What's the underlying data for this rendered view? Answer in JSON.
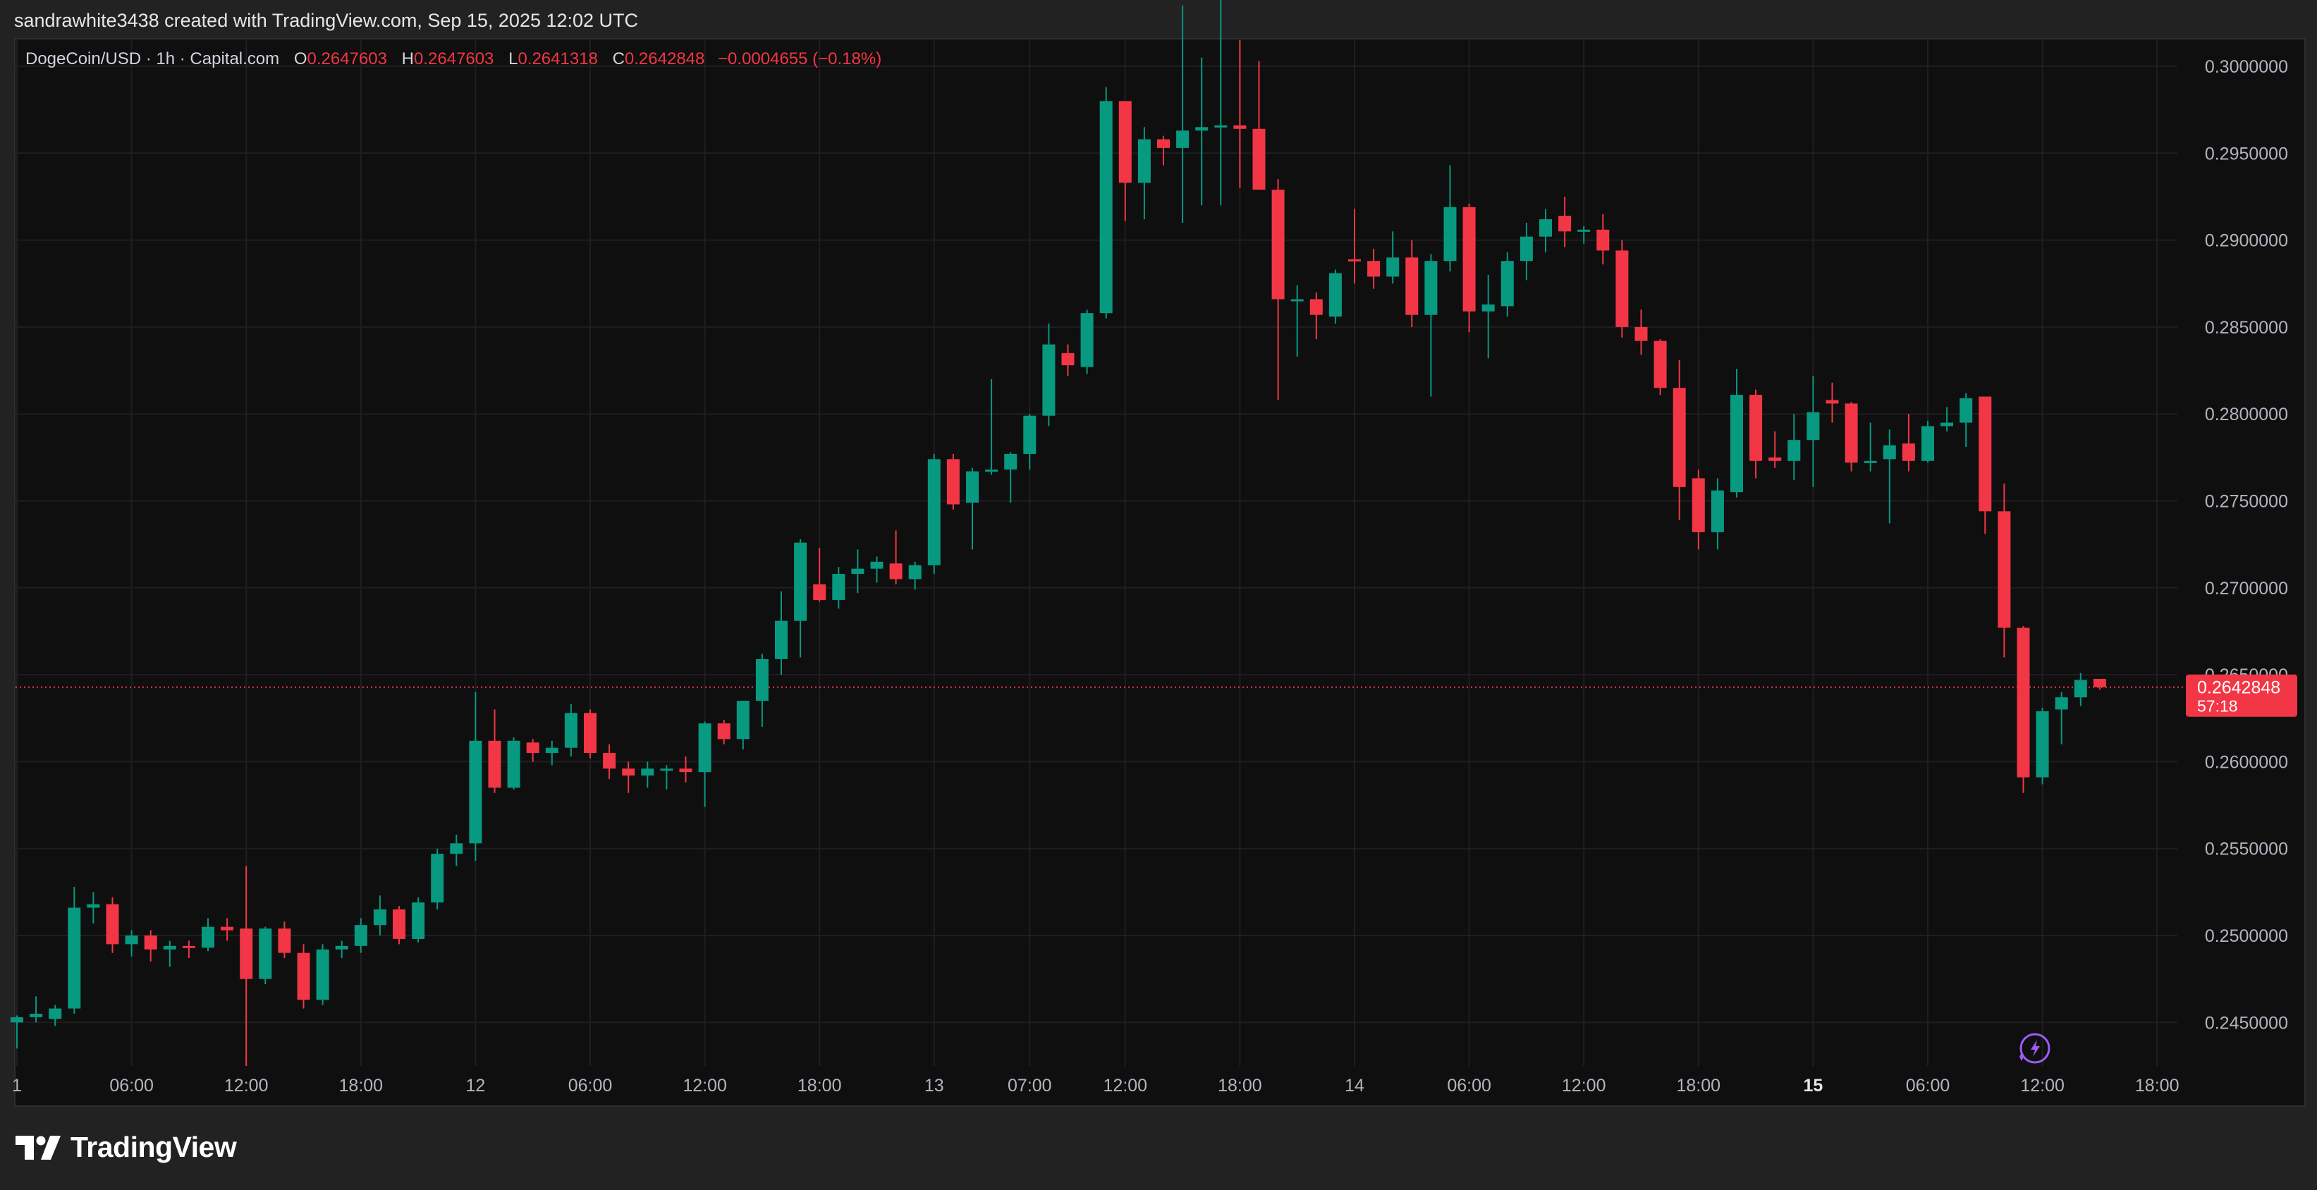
{
  "header": {
    "credit": "sandrawhite3438 created with TradingView.com, Sep 15, 2025 12:02 UTC"
  },
  "legend": {
    "symbol": "DogeCoin/USD · 1h · Capital.com",
    "o_label": "O",
    "o_value": "0.2647603",
    "h_label": "H",
    "h_value": "0.2647603",
    "l_label": "L",
    "l_value": "0.2641318",
    "c_label": "C",
    "c_value": "0.2642848",
    "change": "−0.0004655 (−0.18%)"
  },
  "price_tag": {
    "price": "0.2642848",
    "countdown": "57:18"
  },
  "brand": {
    "name": "TradingView"
  },
  "colors": {
    "up": "#089981",
    "down": "#f23645",
    "grid": "#1f1f1f",
    "text": "#b2b5be",
    "background": "#0f0f0f"
  },
  "icons": [
    "tradingview-logo-icon",
    "lightning-icon"
  ],
  "chart_data": {
    "type": "candlestick",
    "title": "DogeCoin/USD · 1h · Capital.com",
    "ylim": [
      0.2425,
      0.3025
    ],
    "y_ticks": [
      "0.3000000",
      "0.2950000",
      "0.2900000",
      "0.2850000",
      "0.2800000",
      "0.2750000",
      "0.2700000",
      "0.2650000",
      "0.2600000",
      "0.2550000",
      "0.2500000",
      "0.2450000"
    ],
    "x_ticks": [
      {
        "i": 0,
        "label": "1",
        "bold": false
      },
      {
        "i": 6,
        "label": "06:00",
        "bold": false
      },
      {
        "i": 12,
        "label": "12:00",
        "bold": false
      },
      {
        "i": 18,
        "label": "18:00",
        "bold": false
      },
      {
        "i": 24,
        "label": "12",
        "bold": false
      },
      {
        "i": 30,
        "label": "06:00",
        "bold": false
      },
      {
        "i": 36,
        "label": "12:00",
        "bold": false
      },
      {
        "i": 42,
        "label": "18:00",
        "bold": false
      },
      {
        "i": 48,
        "label": "13",
        "bold": false
      },
      {
        "i": 53,
        "label": "07:00",
        "bold": false
      },
      {
        "i": 58,
        "label": "12:00",
        "bold": false
      },
      {
        "i": 64,
        "label": "18:00",
        "bold": false
      },
      {
        "i": 70,
        "label": "14",
        "bold": false
      },
      {
        "i": 76,
        "label": "06:00",
        "bold": false
      },
      {
        "i": 82,
        "label": "12:00",
        "bold": false
      },
      {
        "i": 88,
        "label": "18:00",
        "bold": false
      },
      {
        "i": 94,
        "label": "15",
        "bold": true
      },
      {
        "i": 100,
        "label": "06:00",
        "bold": false
      },
      {
        "i": 106,
        "label": "12:00",
        "bold": false
      },
      {
        "i": 112,
        "label": "18:00",
        "bold": false
      }
    ],
    "last_price": 0.2642848,
    "candles": [
      [
        0.245,
        0.2454,
        0.2435,
        0.2453
      ],
      [
        0.2453,
        0.2465,
        0.245,
        0.2455
      ],
      [
        0.2452,
        0.246,
        0.2448,
        0.2458
      ],
      [
        0.2458,
        0.2528,
        0.2455,
        0.2516
      ],
      [
        0.2516,
        0.2525,
        0.2507,
        0.2518
      ],
      [
        0.2518,
        0.2522,
        0.249,
        0.2495
      ],
      [
        0.2495,
        0.2503,
        0.2488,
        0.25
      ],
      [
        0.25,
        0.2503,
        0.2485,
        0.2492
      ],
      [
        0.2492,
        0.2497,
        0.2482,
        0.2494
      ],
      [
        0.2494,
        0.2497,
        0.2487,
        0.2493
      ],
      [
        0.2493,
        0.251,
        0.2491,
        0.2505
      ],
      [
        0.2505,
        0.251,
        0.2497,
        0.2503
      ],
      [
        0.2504,
        0.254,
        0.2425,
        0.2475
      ],
      [
        0.2475,
        0.2505,
        0.2472,
        0.2504
      ],
      [
        0.2504,
        0.2508,
        0.2487,
        0.249
      ],
      [
        0.249,
        0.2495,
        0.2458,
        0.2463
      ],
      [
        0.2463,
        0.2495,
        0.246,
        0.2492
      ],
      [
        0.2492,
        0.2497,
        0.2487,
        0.2494
      ],
      [
        0.2494,
        0.251,
        0.249,
        0.2506
      ],
      [
        0.2506,
        0.2523,
        0.25,
        0.2515
      ],
      [
        0.2515,
        0.2517,
        0.2495,
        0.2498
      ],
      [
        0.2498,
        0.2522,
        0.2496,
        0.2519
      ],
      [
        0.2519,
        0.255,
        0.2515,
        0.2547
      ],
      [
        0.2547,
        0.2558,
        0.254,
        0.2553
      ],
      [
        0.2553,
        0.264,
        0.2543,
        0.2612
      ],
      [
        0.2612,
        0.263,
        0.2582,
        0.2585
      ],
      [
        0.2585,
        0.2614,
        0.2584,
        0.2612
      ],
      [
        0.2611,
        0.2613,
        0.26,
        0.2605
      ],
      [
        0.2605,
        0.2612,
        0.2598,
        0.2608
      ],
      [
        0.2608,
        0.2633,
        0.2603,
        0.2628
      ],
      [
        0.2628,
        0.263,
        0.2602,
        0.2605
      ],
      [
        0.2605,
        0.261,
        0.259,
        0.2596
      ],
      [
        0.2596,
        0.26,
        0.2582,
        0.2592
      ],
      [
        0.2592,
        0.26,
        0.2585,
        0.2596
      ],
      [
        0.2596,
        0.2598,
        0.2584,
        0.2596
      ],
      [
        0.2596,
        0.2603,
        0.2588,
        0.2594
      ],
      [
        0.2594,
        0.2623,
        0.2574,
        0.2622
      ],
      [
        0.2622,
        0.2624,
        0.261,
        0.2613
      ],
      [
        0.2613,
        0.2635,
        0.2607,
        0.2635
      ],
      [
        0.2635,
        0.2662,
        0.262,
        0.2659
      ],
      [
        0.2659,
        0.2698,
        0.265,
        0.2681
      ],
      [
        0.2681,
        0.2728,
        0.266,
        0.2726
      ],
      [
        0.2702,
        0.2723,
        0.2692,
        0.2693
      ],
      [
        0.2693,
        0.2712,
        0.2688,
        0.2708
      ],
      [
        0.2708,
        0.2722,
        0.2697,
        0.2711
      ],
      [
        0.2711,
        0.2718,
        0.2703,
        0.2715
      ],
      [
        0.2714,
        0.2733,
        0.2702,
        0.2705
      ],
      [
        0.2705,
        0.2715,
        0.2699,
        0.2713
      ],
      [
        0.2713,
        0.2777,
        0.2708,
        0.2774
      ],
      [
        0.2774,
        0.2777,
        0.2745,
        0.2748
      ],
      [
        0.2749,
        0.2769,
        0.2722,
        0.2767
      ],
      [
        0.2767,
        0.282,
        0.2765,
        0.2768
      ],
      [
        0.2768,
        0.2778,
        0.2749,
        0.2777
      ],
      [
        0.2777,
        0.28,
        0.2768,
        0.2799
      ],
      [
        0.2799,
        0.2852,
        0.2793,
        0.284
      ],
      [
        0.2835,
        0.284,
        0.2822,
        0.2828
      ],
      [
        0.2827,
        0.286,
        0.2823,
        0.2858
      ],
      [
        0.2858,
        0.2988,
        0.2855,
        0.298
      ],
      [
        0.298,
        0.298,
        0.2911,
        0.2933
      ],
      [
        0.2933,
        0.2965,
        0.2912,
        0.2958
      ],
      [
        0.2958,
        0.296,
        0.2943,
        0.2953
      ],
      [
        0.2953,
        0.3035,
        0.291,
        0.2963
      ],
      [
        0.2963,
        0.3005,
        0.292,
        0.2965
      ],
      [
        0.2965,
        0.304,
        0.292,
        0.2966
      ],
      [
        0.2966,
        0.3015,
        0.293,
        0.2964
      ],
      [
        0.2964,
        0.3003,
        0.293,
        0.2929
      ],
      [
        0.2929,
        0.2935,
        0.2808,
        0.2866
      ],
      [
        0.2866,
        0.2874,
        0.2833,
        0.2866
      ],
      [
        0.2866,
        0.287,
        0.2843,
        0.2857
      ],
      [
        0.2856,
        0.2883,
        0.2852,
        0.2881
      ],
      [
        0.2889,
        0.2918,
        0.2875,
        0.2888
      ],
      [
        0.2888,
        0.2895,
        0.2872,
        0.2879
      ],
      [
        0.2879,
        0.2905,
        0.2875,
        0.289
      ],
      [
        0.289,
        0.29,
        0.285,
        0.2857
      ],
      [
        0.2857,
        0.2892,
        0.281,
        0.2888
      ],
      [
        0.2888,
        0.2943,
        0.2882,
        0.2919
      ],
      [
        0.2919,
        0.2921,
        0.2847,
        0.2859
      ],
      [
        0.2859,
        0.288,
        0.2832,
        0.2863
      ],
      [
        0.2862,
        0.2893,
        0.2856,
        0.2888
      ],
      [
        0.2888,
        0.291,
        0.2877,
        0.2902
      ],
      [
        0.2902,
        0.2918,
        0.2893,
        0.2912
      ],
      [
        0.2914,
        0.2925,
        0.2896,
        0.2905
      ],
      [
        0.2905,
        0.2908,
        0.2898,
        0.2906
      ],
      [
        0.2906,
        0.2915,
        0.2886,
        0.2894
      ],
      [
        0.2894,
        0.29,
        0.2844,
        0.285
      ],
      [
        0.285,
        0.286,
        0.2834,
        0.2842
      ],
      [
        0.2842,
        0.2843,
        0.2811,
        0.2815
      ],
      [
        0.2815,
        0.2831,
        0.2739,
        0.2758
      ],
      [
        0.2763,
        0.2768,
        0.2722,
        0.2732
      ],
      [
        0.2732,
        0.2763,
        0.2722,
        0.2756
      ],
      [
        0.2755,
        0.2826,
        0.2752,
        0.2811
      ],
      [
        0.2811,
        0.2814,
        0.2763,
        0.2773
      ],
      [
        0.2775,
        0.279,
        0.2769,
        0.2773
      ],
      [
        0.2773,
        0.28,
        0.2762,
        0.2785
      ],
      [
        0.2785,
        0.2822,
        0.2758,
        0.2801
      ],
      [
        0.2808,
        0.2818,
        0.2795,
        0.2806
      ],
      [
        0.2806,
        0.2807,
        0.2767,
        0.2772
      ],
      [
        0.2773,
        0.2795,
        0.2767,
        0.2773
      ],
      [
        0.2774,
        0.2791,
        0.2737,
        0.2782
      ],
      [
        0.2783,
        0.28,
        0.2767,
        0.2773
      ],
      [
        0.2773,
        0.2796,
        0.2772,
        0.2793
      ],
      [
        0.2793,
        0.2804,
        0.279,
        0.2795
      ],
      [
        0.2795,
        0.2812,
        0.2781,
        0.2809
      ],
      [
        0.281,
        0.281,
        0.2731,
        0.2744
      ],
      [
        0.2744,
        0.276,
        0.266,
        0.2677
      ],
      [
        0.2677,
        0.2678,
        0.2582,
        0.2591
      ],
      [
        0.2591,
        0.2631,
        0.2587,
        0.2629
      ],
      [
        0.263,
        0.264,
        0.261,
        0.2637
      ],
      [
        0.2637,
        0.2651,
        0.2632,
        0.2647
      ],
      [
        0.2647603,
        0.2647603,
        0.2641318,
        0.2642848
      ]
    ]
  }
}
